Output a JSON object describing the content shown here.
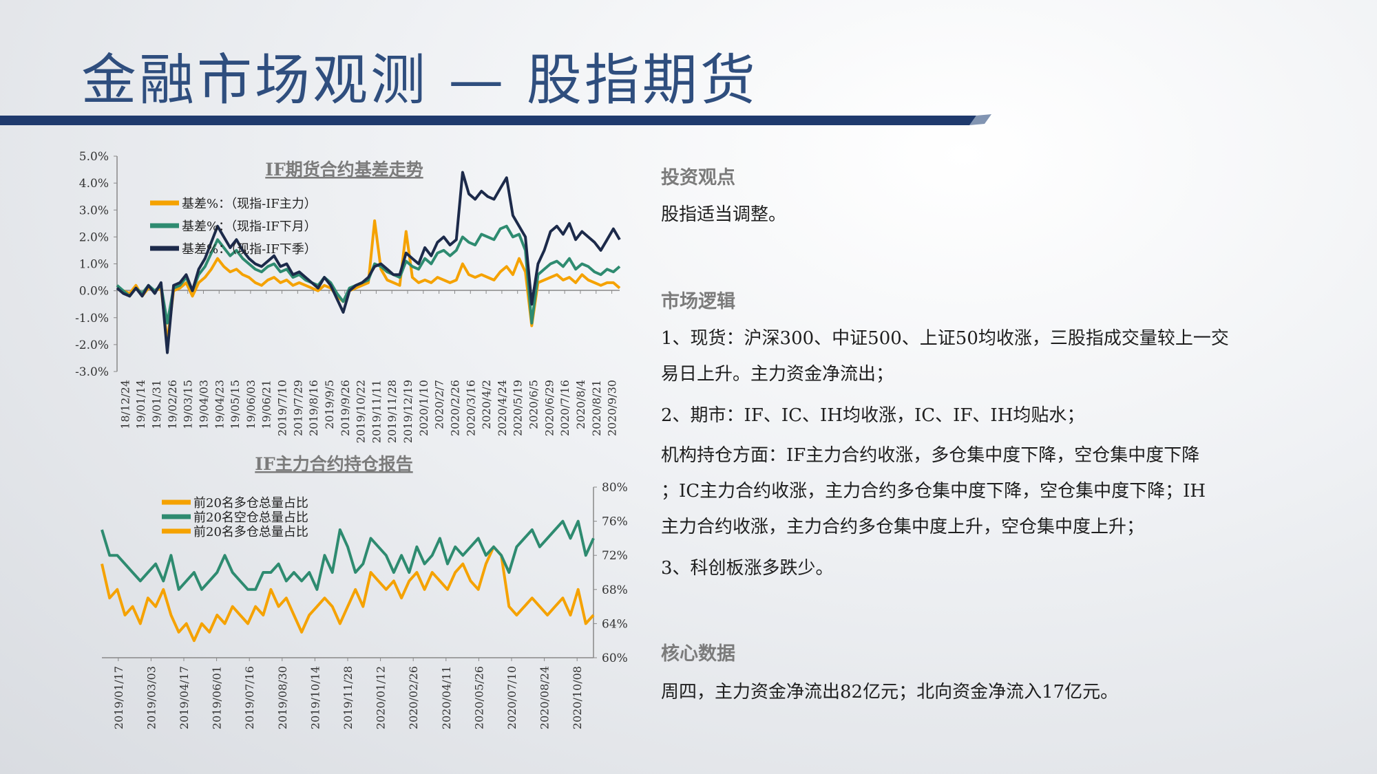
{
  "title": "金融市场观测 — 股指期货",
  "right": {
    "s1_head": "投资观点",
    "s1_text": "股指适当调整。",
    "s2_head": "市场逻辑",
    "s2_l1a": "1、现货：沪深300、中证500、上证50均收涨，三股指成交量较上一交",
    "s2_l1b": "易日上升。主力资金净流出；",
    "s2_l2": "2、期市：IF、IC、IH均收涨，IC、IF、IH均贴水；",
    "s2_l3a": "机构持仓方面：IF主力合约收涨，多仓集中度下降，空仓集中度下降",
    "s2_l3b": "；IC主力合约收涨，主力合约多仓集中度下降，空仓集中度下降；IH",
    "s2_l3c": "主力合约收涨，主力合约多仓集中度上升，空仓集中度上升；",
    "s2_l4": "3、科创板涨多跌少。",
    "s3_head": "核心数据",
    "s3_text": "周四，主力资金净流出82亿元；北向资金净流入17亿元。"
  },
  "chart_data": [
    {
      "type": "line",
      "title": "IF期货合约基差走势",
      "ylim": [
        -3.0,
        5.0
      ],
      "yticks": [
        "5.0%",
        "4.0%",
        "3.0%",
        "2.0%",
        "1.0%",
        "0.0%",
        "-1.0%",
        "-2.0%",
        "-3.0%"
      ],
      "xticks": [
        "18/12/24",
        "19/01/14",
        "19/01/31",
        "19/02/26",
        "19/03/15",
        "19/04/03",
        "19/04/23",
        "19/05/15",
        "19/06/03",
        "19/06/21",
        "2019/7/10",
        "2019/7/29",
        "2019/8/16",
        "2019/9/5",
        "2019/9/26",
        "2019/10/22",
        "2019/11/11",
        "2019/11/28",
        "2019/12/19",
        "2020/1/10",
        "2020/2/7",
        "2020/2/26",
        "2020/3/16",
        "2020/4/2",
        "2020/4/24",
        "2020/5/19",
        "2020/6/5",
        "2020/6/29",
        "2020/7/16",
        "2020/8/4",
        "2020/8/21",
        "2020/9/30"
      ],
      "legend_position": "top-left",
      "series": [
        {
          "name": "基差%：（现指-IF主力）",
          "color": "#f5a200",
          "values": [
            0.1,
            0.0,
            -0.1,
            0.2,
            -0.2,
            0.1,
            0.0,
            0.1,
            -1.9,
            0.0,
            0.1,
            0.3,
            -0.2,
            0.3,
            0.5,
            0.8,
            1.2,
            0.9,
            0.7,
            0.8,
            0.6,
            0.5,
            0.3,
            0.2,
            0.4,
            0.5,
            0.3,
            0.4,
            0.2,
            0.3,
            0.2,
            0.1,
            0.0,
            0.2,
            0.1,
            -0.2,
            -0.4,
            0.0,
            0.1,
            0.2,
            0.3,
            2.6,
            0.8,
            0.4,
            0.3,
            0.2,
            2.2,
            0.5,
            0.3,
            0.4,
            0.3,
            0.5,
            0.4,
            0.3,
            0.4,
            1.0,
            0.6,
            0.5,
            0.6,
            0.5,
            0.4,
            0.7,
            0.9,
            0.6,
            1.2,
            0.7,
            -1.3,
            0.3,
            0.4,
            0.5,
            0.6,
            0.4,
            0.5,
            0.3,
            0.6,
            0.4,
            0.3,
            0.2,
            0.3,
            0.3,
            0.1
          ]
        },
        {
          "name": "基差%：（现指-IF下月）",
          "color": "#2e8b70",
          "values": [
            0.2,
            0.0,
            -0.2,
            0.1,
            -0.1,
            0.2,
            0.0,
            0.2,
            -1.2,
            0.1,
            0.2,
            0.5,
            0.0,
            0.6,
            0.9,
            1.4,
            1.9,
            1.6,
            1.3,
            1.5,
            1.2,
            1.0,
            0.8,
            0.7,
            0.9,
            1.0,
            0.7,
            0.8,
            0.5,
            0.6,
            0.4,
            0.3,
            0.2,
            0.5,
            0.3,
            -0.1,
            -0.4,
            0.1,
            0.2,
            0.3,
            0.4,
            1.0,
            0.9,
            0.7,
            0.6,
            0.5,
            1.1,
            0.9,
            0.8,
            1.2,
            1.0,
            1.4,
            1.5,
            1.3,
            1.5,
            2.0,
            1.8,
            1.7,
            2.1,
            2.0,
            1.9,
            2.3,
            2.4,
            2.0,
            2.1,
            1.5,
            -1.2,
            0.6,
            0.8,
            1.0,
            1.1,
            0.9,
            1.2,
            0.8,
            1.0,
            0.9,
            0.7,
            0.6,
            0.8,
            0.7,
            0.9
          ]
        },
        {
          "name": "基差%：（现指-IF下季）",
          "color": "#1c2a4a",
          "values": [
            0.1,
            -0.1,
            -0.2,
            0.1,
            -0.2,
            0.2,
            -0.1,
            0.3,
            -2.3,
            0.2,
            0.3,
            0.6,
            0.0,
            0.8,
            1.2,
            1.8,
            2.4,
            2.0,
            1.6,
            1.9,
            1.5,
            1.2,
            1.0,
            0.9,
            1.1,
            1.3,
            0.9,
            1.0,
            0.6,
            0.7,
            0.5,
            0.3,
            0.1,
            0.5,
            0.2,
            -0.3,
            -0.8,
            0.0,
            0.2,
            0.3,
            0.5,
            0.9,
            1.0,
            0.8,
            0.6,
            0.6,
            1.4,
            1.2,
            1.0,
            1.6,
            1.3,
            1.8,
            2.0,
            1.7,
            1.9,
            4.4,
            3.6,
            3.4,
            3.7,
            3.5,
            3.4,
            3.8,
            4.2,
            2.8,
            2.4,
            2.0,
            -0.5,
            1.0,
            1.5,
            2.2,
            2.4,
            2.1,
            2.5,
            1.9,
            2.2,
            2.0,
            1.8,
            1.5,
            1.9,
            2.3,
            1.9
          ]
        }
      ]
    },
    {
      "type": "line",
      "title": "IF主力合约持仓报告",
      "ylim": [
        60,
        80
      ],
      "yticks": [
        "80%",
        "76%",
        "72%",
        "68%",
        "64%",
        "60%"
      ],
      "xticks": [
        "2019/01/17",
        "2019/03/03",
        "2019/04/17",
        "2019/06/01",
        "2019/07/16",
        "2019/08/30",
        "2019/10/14",
        "2019/11/28",
        "2020/01/12",
        "2020/02/26",
        "2020/04/11",
        "2020/05/26",
        "2020/07/10",
        "2020/08/24",
        "2020/10/08"
      ],
      "legend_position": "top-left",
      "series": [
        {
          "name": "前20名多仓总量占比",
          "color": "#f5a200",
          "values": [
            71,
            67,
            68,
            65,
            66,
            64,
            67,
            66,
            68,
            65,
            63,
            64,
            62,
            64,
            63,
            65,
            64,
            66,
            65,
            64,
            66,
            65,
            68,
            66,
            67,
            65,
            63,
            65,
            66,
            67,
            66,
            64,
            66,
            68,
            66,
            70,
            69,
            68,
            69,
            67,
            69,
            70,
            68,
            70,
            69,
            68,
            70,
            71,
            69,
            68,
            71,
            73,
            72,
            66,
            65,
            66,
            67,
            66,
            65,
            66,
            67,
            65,
            68,
            64,
            65
          ]
        },
        {
          "name": "前20名空仓总量占比",
          "color": "#2e8b70",
          "values": [
            75,
            72,
            72,
            71,
            70,
            69,
            70,
            71,
            69,
            72,
            68,
            69,
            70,
            68,
            69,
            70,
            72,
            70,
            69,
            68,
            68,
            70,
            70,
            71,
            69,
            70,
            69,
            70,
            68,
            72,
            70,
            75,
            73,
            70,
            71,
            74,
            73,
            72,
            70,
            72,
            70,
            73,
            71,
            72,
            74,
            71,
            73,
            72,
            73,
            74,
            72,
            73,
            72,
            70,
            73,
            74,
            75,
            73,
            74,
            75,
            76,
            74,
            76,
            72,
            74
          ]
        },
        {
          "name": "前20名多仓总量占比",
          "color": "#f5a200",
          "values": []
        }
      ]
    }
  ]
}
